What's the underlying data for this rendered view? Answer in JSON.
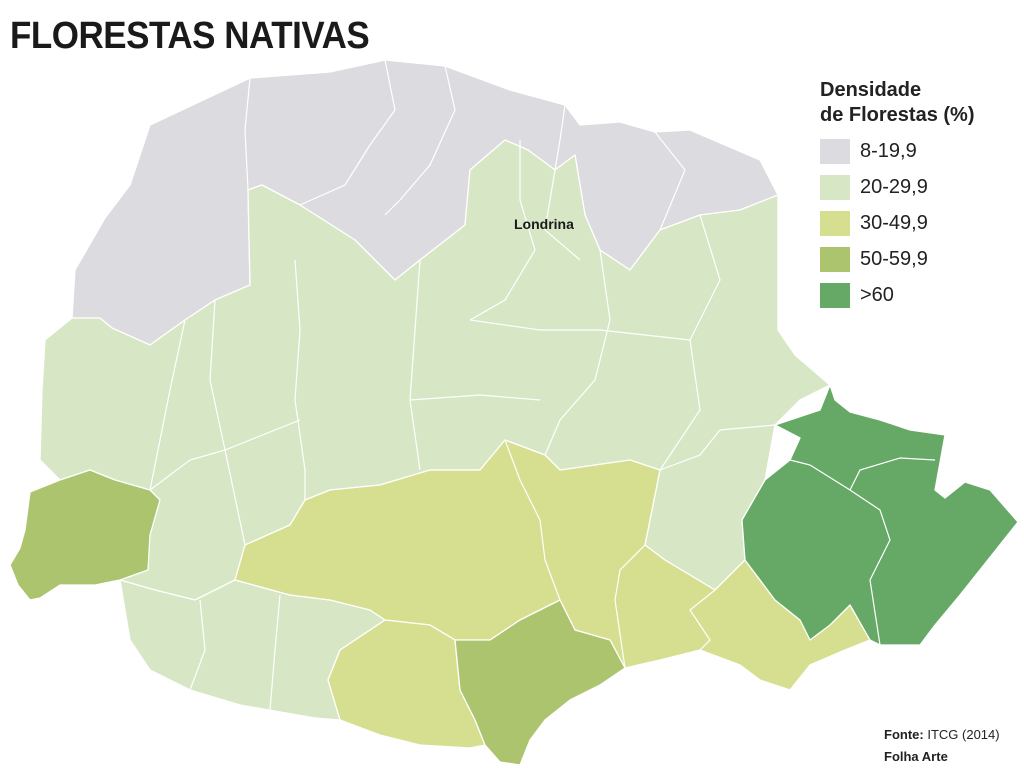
{
  "map": {
    "title": "FLORESTAS NATIVAS",
    "city_label": "Londrina"
  },
  "legend": {
    "title_line1": "Densidade",
    "title_line2": "de Florestas (%)",
    "items": [
      {
        "label": "8-19,9",
        "color": "#dcdce0"
      },
      {
        "label": "20-29,9",
        "color": "#d7e6c4"
      },
      {
        "label": "30-49,9",
        "color": "#d6df8f"
      },
      {
        "label": "50-59,9",
        "color": "#adc46f"
      },
      {
        "label": ">60",
        "color": "#66a865"
      }
    ]
  },
  "source": {
    "label": "Fonte:",
    "text": "ITCG (2014)",
    "credit": "Folha Arte"
  }
}
